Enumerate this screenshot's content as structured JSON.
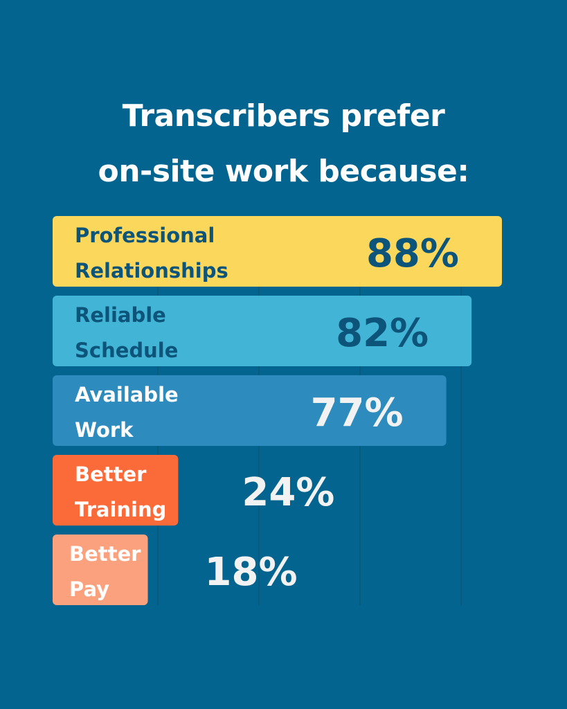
{
  "title_lines": [
    "Transcribers prefer",
    "on-site work because:"
  ],
  "colors": {
    "background": "#03658f",
    "gridline": "#0a5a80",
    "bars": [
      "#fbd85b",
      "#42b5d7",
      "#2e8bbd",
      "#fb6b3a",
      "#fca17d"
    ],
    "labels": [
      "#0c5479",
      "#0c5479",
      "#ffffff",
      "#ffffff",
      "#ffffff"
    ],
    "values": [
      "#0c5479",
      "#0c5479",
      "#f2f2f2",
      "#f2f2f2",
      "#f2f2f2"
    ]
  },
  "chart_data": {
    "type": "bar",
    "orientation": "horizontal",
    "title": "Transcribers prefer on-site work because:",
    "categories": [
      [
        "Professional",
        "Relationships"
      ],
      [
        "Reliable",
        "Schedule"
      ],
      [
        "Available",
        "Work"
      ],
      [
        "Better",
        "Training"
      ],
      [
        "Better",
        "Pay"
      ]
    ],
    "values": [
      88,
      82,
      77,
      24,
      18
    ],
    "value_labels": [
      "88%",
      "82%",
      "77%",
      "24%",
      "18%"
    ],
    "unit": "%",
    "xlim": [
      0,
      88
    ],
    "grid": true,
    "legend": "none"
  }
}
